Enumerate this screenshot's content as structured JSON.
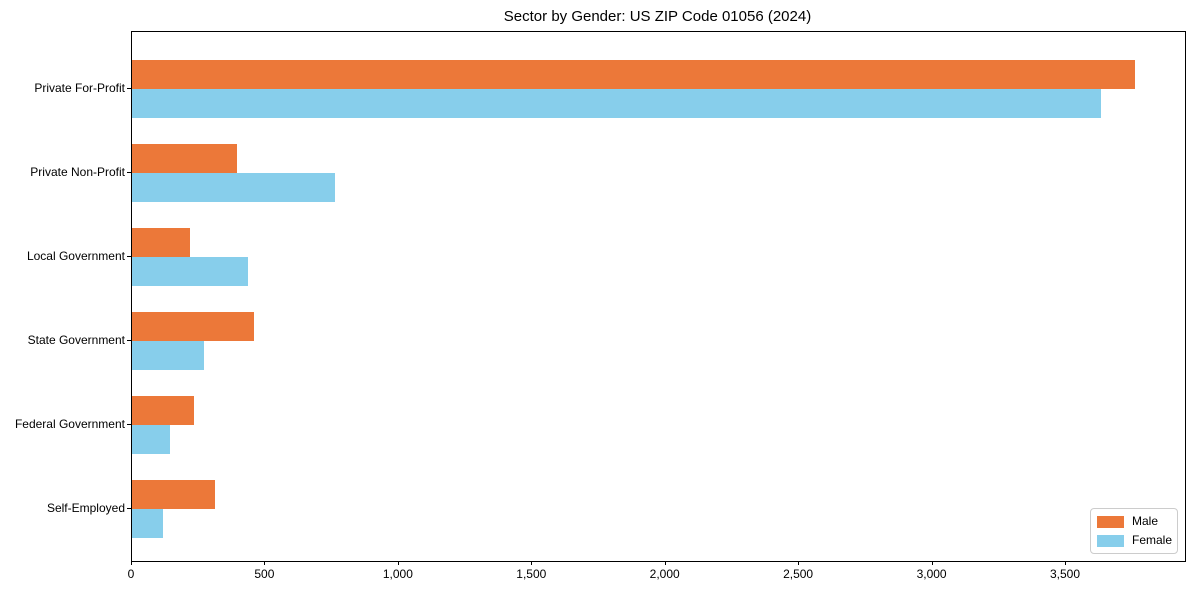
{
  "chart_data": {
    "type": "bar",
    "orientation": "horizontal",
    "title": "Sector by Gender: US ZIP Code 01056 (2024)",
    "categories": [
      "Private For-Profit",
      "Private Non-Profit",
      "Local Government",
      "State Government",
      "Federal Government",
      "Self-Employed"
    ],
    "series": [
      {
        "name": "Male",
        "color": "#EC7839",
        "values": [
          3758,
          394,
          217,
          456,
          231,
          312
        ]
      },
      {
        "name": "Female",
        "color": "#87CEEB",
        "values": [
          3632,
          762,
          434,
          270,
          141,
          116
        ]
      }
    ],
    "xlabel": "",
    "ylabel": "",
    "xlim": [
      0,
      3946
    ],
    "xticks": [
      0,
      500,
      1000,
      1500,
      2000,
      2500,
      3000,
      3500
    ],
    "xtick_labels": [
      "0",
      "500",
      "1,000",
      "1,500",
      "2,000",
      "2,500",
      "3,000",
      "3,500"
    ],
    "grid": false,
    "legend": {
      "position": "lower right",
      "entries": [
        "Male",
        "Female"
      ]
    }
  }
}
